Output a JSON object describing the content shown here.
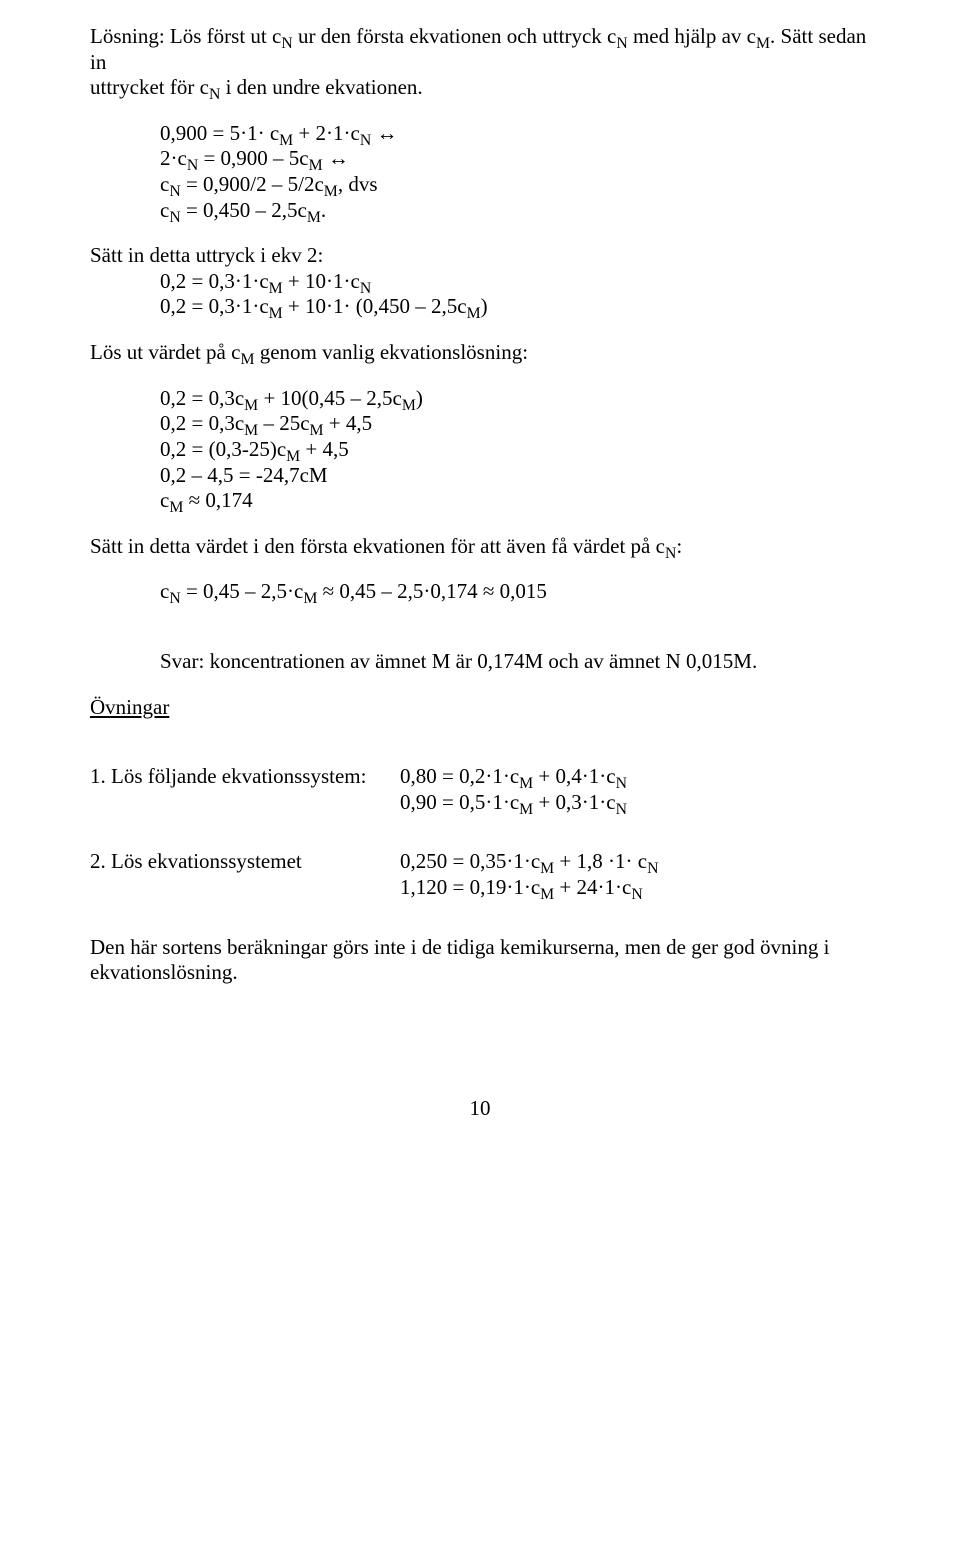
{
  "intro": {
    "line1_a": "Lösning: Lös först ut c",
    "line1_b": " ur den första ekvationen och uttryck c",
    "line1_c": " med hjälp av c",
    "line1_d": ". Sätt sedan in",
    "line2_a": "uttrycket för c",
    "line2_b": " i den undre ekvationen."
  },
  "block1": {
    "l1_a": "0,900 = 5·1· c",
    "l1_b": " + 2·1·c",
    "l1_c": " ↔",
    "l2_a": "2·c",
    "l2_b": " = 0,900 – 5c",
    "l2_c": " ↔",
    "l3_a": "c",
    "l3_b": " = 0,900/2 – 5/2c",
    "l3_c": ", dvs",
    "l4_a": "c",
    "l4_b": " = 0,450 – 2,5c",
    "l4_c": "."
  },
  "step2": {
    "title": "Sätt in detta uttryck i ekv 2:",
    "l1_a": "0,2 = 0,3·1·c",
    "l1_b": " + 10·1·c",
    "l2_a": "0,2 = 0,3·1·c",
    "l2_b": " + 10·1· (0,450 – 2,5c",
    "l2_c": ")"
  },
  "solveM": {
    "title_a": "Lös ut värdet på c",
    "title_b": " genom vanlig ekvationslösning:",
    "l1_a": "0,2 = 0,3c",
    "l1_b": " + 10(0,45 – 2,5c",
    "l1_c": ")",
    "l2_a": "0,2 = 0,3c",
    "l2_b": " – 25c",
    "l2_c": " + 4,5",
    "l3_a": "0,2 = (0,3-25)c",
    "l3_b": " + 4,5",
    "l4": "0,2 – 4,5 = -24,7cM",
    "l5_a": "c",
    "l5_b": " ≈ 0,174"
  },
  "plug": {
    "title_a": "Sätt in detta värdet i den första ekvationen för att även få värdet på c",
    "title_b": ":",
    "l1_a": "c",
    "l1_b": " = 0,45 – 2,5·c",
    "l1_c": " ≈ 0,45 – 2,5·0,174 ≈ 0,015"
  },
  "answer": "Svar: koncentrationen av ämnet M är 0,174M och av ämnet N 0,015M.",
  "exercises_heading": "Övningar",
  "ex1": {
    "label": "1. Lös följande ekvationssystem:",
    "e1_a": "0,80 = 0,2·1·c",
    "e1_b": " + 0,4·1·c",
    "e2_a": "0,90 = 0,5·1·c",
    "e2_b": " + 0,3·1·c"
  },
  "ex2": {
    "label": "2. Lös ekvationssystemet",
    "e1_a": "0,250 = 0,35·1·c",
    "e1_b": " + 1,8 ·1· c",
    "e2_a": "1,120 = 0,19·1·c",
    "e2_b": " + 24·1·c"
  },
  "closing": "Den här sortens beräkningar görs inte i de tidiga kemikurserna, men de ger god övning i ekvationslösning.",
  "sub": {
    "N": "N",
    "M": "M"
  },
  "pagenum": "10"
}
